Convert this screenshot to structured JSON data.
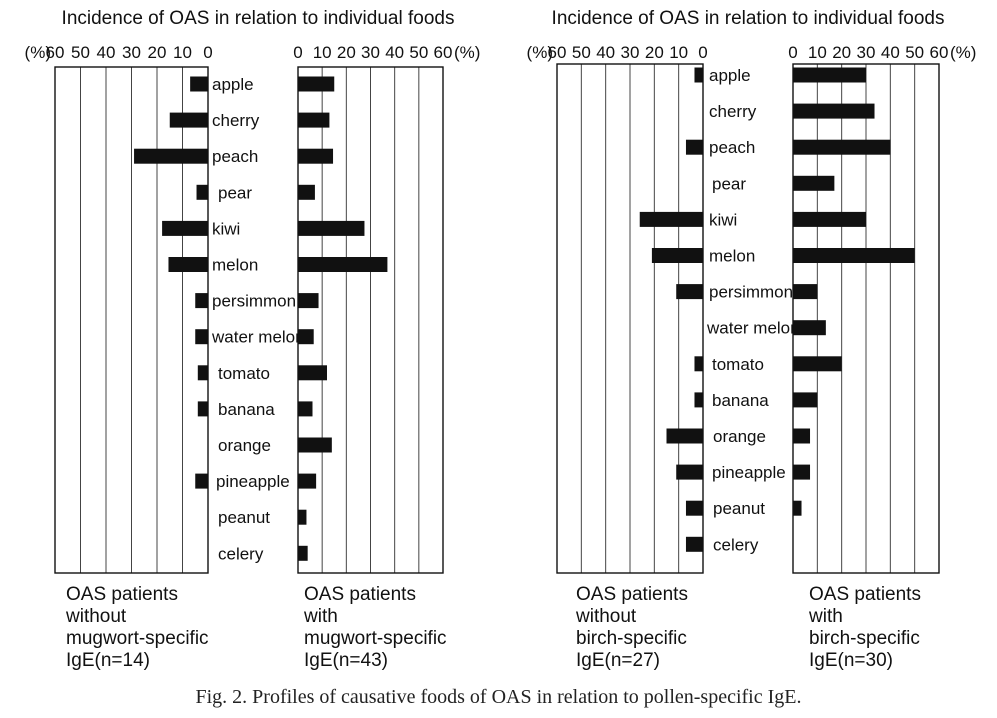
{
  "panel_titles": {
    "mugwort": "Incidence of OAS in relation to individual foods",
    "birch": "Incidence of OAS in relation to individual foods"
  },
  "unit": "(%)",
  "caption": "Fig. 2.  Profiles of causative foods of OAS in relation to pollen-specific IgE.",
  "chart_data": [
    {
      "type": "bar",
      "orientation": "horizontal-back-to-back",
      "title": "Incidence of OAS in relation to individual foods",
      "categories": [
        "apple",
        "cherry",
        "peach",
        "pear",
        "kiwi",
        "melon",
        "persimmon",
        "water melon",
        "tomato",
        "banana",
        "orange",
        "pineapple",
        "peanut",
        "celery"
      ],
      "xlim": [
        0,
        60
      ],
      "ticks": [
        60,
        50,
        40,
        30,
        20,
        10,
        0
      ],
      "grid": true,
      "series": [
        {
          "name": "OAS patients without mugwort-specific IgE(n=14)",
          "group_label": [
            "OAS patients",
            "without",
            "mugwort-specific",
            "IgE(n=14)"
          ],
          "direction": "left",
          "values": [
            7,
            15,
            29,
            4.5,
            18,
            15.5,
            5,
            5,
            4,
            4,
            0,
            5,
            0,
            0
          ]
        },
        {
          "name": "OAS patients with mugwort-specific IgE(n=43)",
          "group_label": [
            "OAS patients",
            "with",
            "mugwort-specific",
            "IgE(n=43)"
          ],
          "direction": "right",
          "values": [
            15,
            13,
            14.5,
            7,
            27.5,
            37,
            8.5,
            6.5,
            12,
            6,
            14,
            7.5,
            3.5,
            4
          ]
        }
      ]
    },
    {
      "type": "bar",
      "orientation": "horizontal-back-to-back",
      "title": "Incidence of OAS in relation to individual foods",
      "categories": [
        "apple",
        "cherry",
        "peach",
        "pear",
        "kiwi",
        "melon",
        "persimmon",
        "water melon",
        "tomato",
        "banana",
        "orange",
        "pineapple",
        "peanut",
        "celery"
      ],
      "xlim": [
        0,
        60
      ],
      "ticks": [
        60,
        50,
        40,
        30,
        20,
        10,
        0
      ],
      "grid": true,
      "series": [
        {
          "name": "OAS patients without birch-specific IgE(n=27)",
          "group_label": [
            "OAS patients",
            "without",
            "birch-specific",
            "IgE(n=27)"
          ],
          "direction": "left",
          "values": [
            3.5,
            0,
            7,
            0,
            26,
            21,
            11,
            0,
            3.5,
            3.5,
            15,
            11,
            7,
            7
          ]
        },
        {
          "name": "OAS patients with birch-specific IgE(n=30)",
          "group_label": [
            "OAS patients",
            "with",
            "birch-specific",
            "IgE(n=30)"
          ],
          "direction": "right",
          "values": [
            30,
            33.5,
            40,
            17,
            30,
            50,
            10,
            13.5,
            20,
            10,
            7,
            7,
            3.5,
            0
          ]
        }
      ]
    }
  ]
}
